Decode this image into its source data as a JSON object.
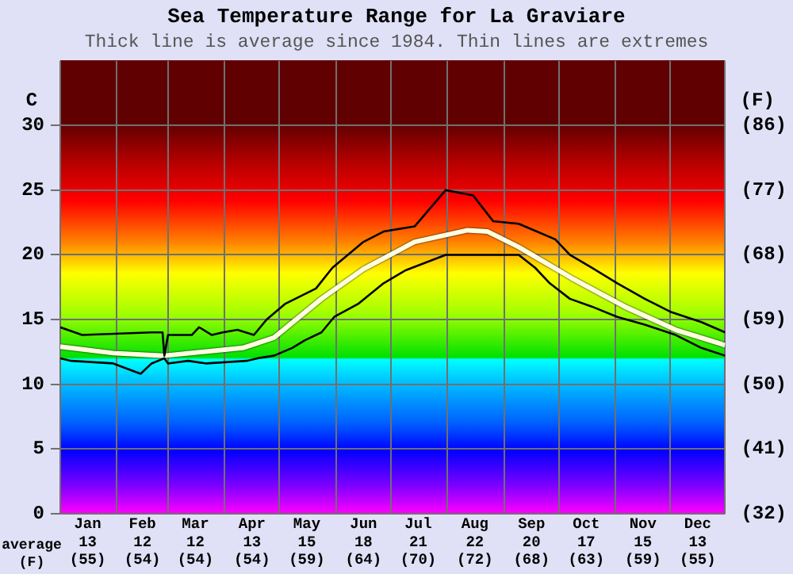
{
  "chart_data": {
    "type": "line",
    "title": "Sea Temperature Range for La Graviare",
    "subtitle": "Thick line is average since 1984. Thin lines are extremes",
    "ylabel": "C",
    "y2label": "(F)",
    "xlim": [
      "--01-01",
      "--12-31"
    ],
    "xticks": [
      {
        "value": "--01-01",
        "label": null
      },
      {
        "value": "--01-16",
        "label": "Jan\n13\n(55)"
      },
      {
        "value": "--02-01",
        "label": null
      },
      {
        "value": "--02-15",
        "label": "Feb\n12\n(54)"
      },
      {
        "value": "--03-01",
        "label": null
      },
      {
        "value": "--03-16",
        "label": "Mar\n12\n(54)"
      },
      {
        "value": "--04-01",
        "label": null
      },
      {
        "value": "--04-16",
        "label": "Apr\n13\n(54)"
      },
      {
        "value": "--05-01",
        "label": null
      },
      {
        "value": "--05-16",
        "label": "May\n15\n(59)"
      },
      {
        "value": "--06-01",
        "label": null
      },
      {
        "value": "--06-16",
        "label": "Jun\n18\n(64)"
      },
      {
        "value": "--07-01",
        "label": null
      },
      {
        "value": "--07-16",
        "label": "Jul\n21\n(70)"
      },
      {
        "value": "--08-01",
        "label": null
      },
      {
        "value": "--08-16",
        "label": "Aug\n22\n(72)"
      },
      {
        "value": "--09-01",
        "label": null
      },
      {
        "value": "--09-16",
        "label": "Sep\n20\n(68)"
      },
      {
        "value": "--10-01",
        "label": null
      },
      {
        "value": "--10-16",
        "label": "Oct\n17\n(63)"
      },
      {
        "value": "--11-01",
        "label": null
      },
      {
        "value": "--11-16",
        "label": "Nov\n15\n(59)"
      },
      {
        "value": "--12-01",
        "label": null
      },
      {
        "value": "--12-16",
        "label": "Dec\n13\n(55)"
      },
      {
        "value": "--12-31",
        "label": null
      }
    ],
    "ylim": [
      0,
      35
    ],
    "yticks": [
      0,
      5,
      10,
      15,
      20,
      25,
      30
    ],
    "y2lim": [
      32,
      95
    ],
    "y2ticks": [
      {
        "value": 32,
        "label": "(32)"
      },
      {
        "value": 41,
        "label": "(41)"
      },
      {
        "value": 50,
        "label": "(50)"
      },
      {
        "value": 59,
        "label": "(59)"
      },
      {
        "value": 68,
        "label": "(68)"
      },
      {
        "value": 77,
        "label": "(77)"
      },
      {
        "value": 86,
        "label": "(86)"
      }
    ],
    "grid": true,
    "annotations": [
      "average",
      "(F)"
    ],
    "series": [
      {
        "color": "#000000",
        "x": [
          "--01-01",
          "--01-13",
          "--02-20",
          "--02-26",
          "--02-27",
          "--03-01",
          "--03-14",
          "--03-18",
          "--03-25",
          "--03-31",
          "--04-08",
          "--04-17",
          "--04-24",
          "--05-04",
          "--05-21",
          "--05-30",
          "--06-16",
          "--06-27",
          "--07-14",
          "--07-31",
          "--08-15",
          "--08-26",
          "--09-09",
          "--09-29",
          "--10-07",
          "--10-19",
          "--11-02",
          "--11-17",
          "--12-01",
          "--12-18",
          "--12-31"
        ],
        "values": [
          14.4,
          13.8,
          14.0,
          14.0,
          12.2,
          13.8,
          13.8,
          14.4,
          13.8,
          14.0,
          14.2,
          13.8,
          15.0,
          16.2,
          17.4,
          19.0,
          21.0,
          21.8,
          22.2,
          25.0,
          24.6,
          22.6,
          22.4,
          21.2,
          20.0,
          19.0,
          17.8,
          16.6,
          15.6,
          14.8,
          14.0
        ]
      },
      {
        "color": "#000000",
        "x": [
          "--01-01",
          "--01-07",
          "--01-30",
          "--02-14",
          "--02-20",
          "--02-27",
          "--03-01",
          "--03-12",
          "--03-22",
          "--04-13",
          "--04-19",
          "--04-28",
          "--05-08",
          "--05-15",
          "--05-24",
          "--05-31",
          "--06-13",
          "--06-27",
          "--07-09",
          "--07-20",
          "--07-31",
          "--09-09",
          "--09-18",
          "--09-26",
          "--10-07",
          "--10-19",
          "--11-02",
          "--11-17",
          "--12-04",
          "--12-18",
          "--12-31"
        ],
        "values": [
          12.0,
          11.8,
          11.6,
          10.8,
          11.6,
          12.0,
          11.6,
          11.8,
          11.6,
          11.8,
          12.0,
          12.2,
          12.8,
          13.4,
          14.0,
          15.2,
          16.2,
          17.8,
          18.8,
          19.4,
          20.0,
          20.0,
          19.0,
          17.8,
          16.6,
          16.0,
          15.2,
          14.6,
          13.8,
          12.8,
          12.2
        ]
      },
      {
        "color": "#ffffe0",
        "x": [
          "--01-01",
          "--01-30",
          "--02-27",
          "--04-11",
          "--04-28",
          "--05-24",
          "--06-16",
          "--07-14",
          "--08-12",
          "--08-23",
          "--09-09",
          "--10-08",
          "--11-06",
          "--12-04",
          "--12-29",
          "--12-31"
        ],
        "values": [
          12.9,
          12.4,
          12.2,
          12.8,
          13.6,
          16.6,
          18.9,
          21.0,
          21.9,
          21.8,
          20.6,
          18.2,
          16.0,
          14.2,
          13.1,
          13.0
        ]
      }
    ]
  }
}
